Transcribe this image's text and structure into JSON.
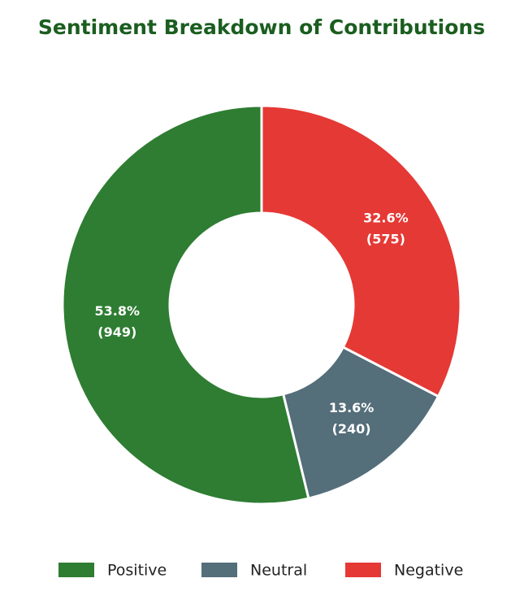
{
  "chart_data": {
    "type": "doughnut",
    "title": "Sentiment Breakdown of Contributions",
    "categories": [
      "Positive",
      "Neutral",
      "Negative"
    ],
    "values": [
      949,
      240,
      575
    ],
    "value_labels": [
      "(949)",
      "(240)",
      "(575)"
    ],
    "percentages": [
      53.8,
      13.6,
      32.6
    ],
    "percentage_labels": [
      "53.8%",
      "13.6%",
      "32.6%"
    ],
    "colors": [
      "#2e7d32",
      "#546e7a",
      "#e53935"
    ],
    "direction": "counterclockwise",
    "legend": "bottom"
  }
}
